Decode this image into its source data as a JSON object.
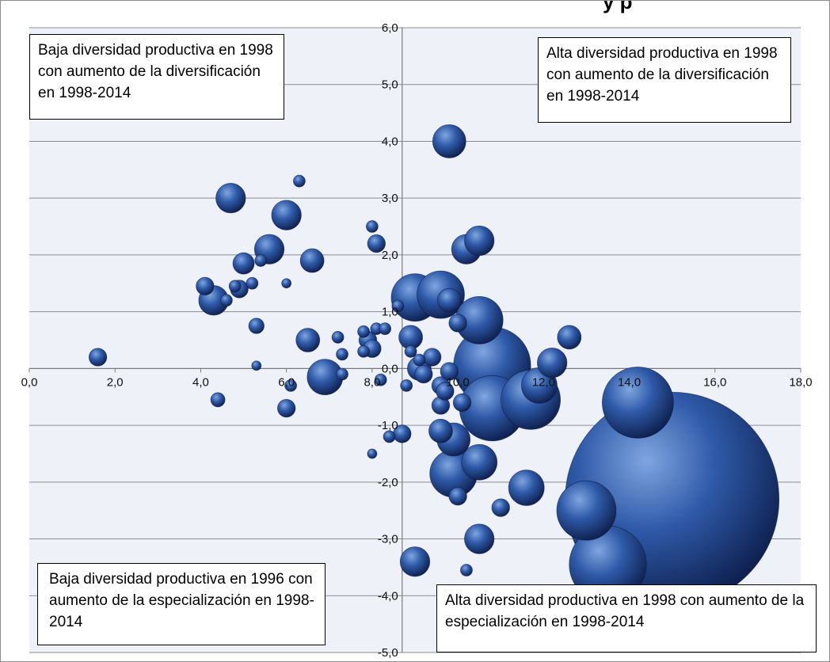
{
  "title_fragment": "y p",
  "colors": {
    "plot_background": "#eef1f8",
    "gridline": "#8e8e8e",
    "bubble_light": "#7fa6e0",
    "bubble_mid": "#2f5aa8",
    "bubble_dark": "#0d1e4c"
  },
  "quadrant_labels": {
    "top_left": "Baja diversidad productiva en 1998 con aumento de la diversificación en 1998-2014",
    "top_right": "Alta diversidad productiva en 1998 con aumento de la diversificación en 1998-2014",
    "bottom_left": "Baja diversidad productiva en 1996 con aumento de la especialización en 1998-2014",
    "bottom_right": "Alta diversidad productiva en 1998 con aumento de la especialización en 1998-2014"
  },
  "chart_data": {
    "type": "bubble",
    "title": "",
    "xlabel": "",
    "ylabel": "",
    "xlim": [
      0,
      18
    ],
    "ylim": [
      -5,
      6
    ],
    "x_ticks": [
      "0,0",
      "2,0",
      "4,0",
      "6,0",
      "8,0",
      "10,0",
      "12,0",
      "14,0",
      "16,0",
      "18,0"
    ],
    "y_ticks": [
      "6,0",
      "5,0",
      "4,0",
      "3,0",
      "2,0",
      "1,0",
      "0,0",
      "-1,0",
      "-2,0",
      "-3,0",
      "-4,0",
      "-5,0"
    ],
    "grid": {
      "horizontal": true,
      "vertical": false
    },
    "y_axis_crosses_x_at": 8.7,
    "points": [
      {
        "x": 1.6,
        "y": 0.2,
        "size": 1.5
      },
      {
        "x": 4.1,
        "y": 1.45,
        "size": 1.5
      },
      {
        "x": 4.3,
        "y": 1.2,
        "size": 2.5
      },
      {
        "x": 4.4,
        "y": -0.55,
        "size": 1.2
      },
      {
        "x": 4.6,
        "y": 1.2,
        "size": 1
      },
      {
        "x": 4.7,
        "y": 3.0,
        "size": 2.5
      },
      {
        "x": 4.8,
        "y": 1.45,
        "size": 1
      },
      {
        "x": 4.9,
        "y": 1.4,
        "size": 1.5
      },
      {
        "x": 5.0,
        "y": 1.85,
        "size": 1.8
      },
      {
        "x": 5.2,
        "y": 1.5,
        "size": 1
      },
      {
        "x": 5.3,
        "y": 0.75,
        "size": 1.3
      },
      {
        "x": 5.3,
        "y": 0.05,
        "size": 0.8
      },
      {
        "x": 5.4,
        "y": 1.9,
        "size": 1
      },
      {
        "x": 5.6,
        "y": 2.1,
        "size": 2.5
      },
      {
        "x": 6.0,
        "y": 1.5,
        "size": 0.8
      },
      {
        "x": 6.0,
        "y": 2.7,
        "size": 2.5
      },
      {
        "x": 6.0,
        "y": -0.7,
        "size": 1.5
      },
      {
        "x": 6.1,
        "y": -0.3,
        "size": 1
      },
      {
        "x": 6.3,
        "y": 3.3,
        "size": 1
      },
      {
        "x": 6.5,
        "y": 0.5,
        "size": 2
      },
      {
        "x": 6.6,
        "y": 1.9,
        "size": 2
      },
      {
        "x": 6.9,
        "y": -0.15,
        "size": 3
      },
      {
        "x": 7.2,
        "y": 0.55,
        "size": 1
      },
      {
        "x": 7.3,
        "y": 0.25,
        "size": 1
      },
      {
        "x": 7.3,
        "y": -0.1,
        "size": 1
      },
      {
        "x": 7.8,
        "y": 0.65,
        "size": 1
      },
      {
        "x": 7.8,
        "y": 0.3,
        "size": 1
      },
      {
        "x": 7.9,
        "y": 0.5,
        "size": 1.5
      },
      {
        "x": 8.0,
        "y": 2.5,
        "size": 1
      },
      {
        "x": 8.0,
        "y": 0.35,
        "size": 1.5
      },
      {
        "x": 8.1,
        "y": 2.2,
        "size": 1.5
      },
      {
        "x": 8.1,
        "y": 0.7,
        "size": 1
      },
      {
        "x": 8.2,
        "y": -0.2,
        "size": 1
      },
      {
        "x": 8.3,
        "y": 0.7,
        "size": 1
      },
      {
        "x": 8.6,
        "y": 1.1,
        "size": 1
      },
      {
        "x": 8.4,
        "y": -1.2,
        "size": 1
      },
      {
        "x": 8.9,
        "y": 0.55,
        "size": 2
      },
      {
        "x": 8.8,
        "y": -0.3,
        "size": 1
      },
      {
        "x": 8.9,
        "y": 0.3,
        "size": 1
      },
      {
        "x": 8.7,
        "y": -1.15,
        "size": 1.5
      },
      {
        "x": 8.0,
        "y": -1.5,
        "size": 0.8
      },
      {
        "x": 9.1,
        "y": 0.15,
        "size": 1
      },
      {
        "x": 9.1,
        "y": 0.0,
        "size": 2
      },
      {
        "x": 9.2,
        "y": -0.1,
        "size": 1.5
      },
      {
        "x": 9.4,
        "y": 0.2,
        "size": 1.5
      },
      {
        "x": 9.0,
        "y": 1.25,
        "size": 4
      },
      {
        "x": 9.6,
        "y": 1.3,
        "size": 4
      },
      {
        "x": 9.0,
        "y": -3.4,
        "size": 2.5
      },
      {
        "x": 9.6,
        "y": -0.3,
        "size": 1.5
      },
      {
        "x": 9.6,
        "y": -0.65,
        "size": 1.5
      },
      {
        "x": 9.7,
        "y": -0.4,
        "size": 1.5
      },
      {
        "x": 9.8,
        "y": -0.05,
        "size": 1.5
      },
      {
        "x": 9.8,
        "y": 1.2,
        "size": 2
      },
      {
        "x": 9.8,
        "y": 4.0,
        "size": 2.8
      },
      {
        "x": 9.6,
        "y": -1.1,
        "size": 2
      },
      {
        "x": 9.9,
        "y": -1.25,
        "size": 2.8
      },
      {
        "x": 9.9,
        "y": -1.85,
        "size": 4
      },
      {
        "x": 10.0,
        "y": 0.8,
        "size": 1.5
      },
      {
        "x": 10.0,
        "y": -2.25,
        "size": 1.5
      },
      {
        "x": 10.2,
        "y": 2.1,
        "size": 2.5
      },
      {
        "x": 10.1,
        "y": -0.6,
        "size": 1.5
      },
      {
        "x": 10.2,
        "y": -3.55,
        "size": 1
      },
      {
        "x": 10.5,
        "y": 0.85,
        "size": 4
      },
      {
        "x": 10.5,
        "y": -1.65,
        "size": 3
      },
      {
        "x": 10.5,
        "y": -3.0,
        "size": 2.5
      },
      {
        "x": 10.5,
        "y": 2.25,
        "size": 2.5
      },
      {
        "x": 10.8,
        "y": 0.05,
        "size": 6.5
      },
      {
        "x": 10.8,
        "y": -0.7,
        "size": 5.5
      },
      {
        "x": 11.0,
        "y": -2.45,
        "size": 1.5
      },
      {
        "x": 11.7,
        "y": -0.55,
        "size": 5
      },
      {
        "x": 11.6,
        "y": -2.1,
        "size": 3
      },
      {
        "x": 11.9,
        "y": -0.3,
        "size": 3
      },
      {
        "x": 12.2,
        "y": 0.1,
        "size": 2.5
      },
      {
        "x": 12.6,
        "y": 0.55,
        "size": 2
      },
      {
        "x": 13.0,
        "y": -2.5,
        "size": 5
      },
      {
        "x": 13.5,
        "y": -3.45,
        "size": 6.5
      },
      {
        "x": 14.2,
        "y": -0.6,
        "size": 6
      },
      {
        "x": 15.0,
        "y": -2.3,
        "size": 18
      }
    ]
  }
}
